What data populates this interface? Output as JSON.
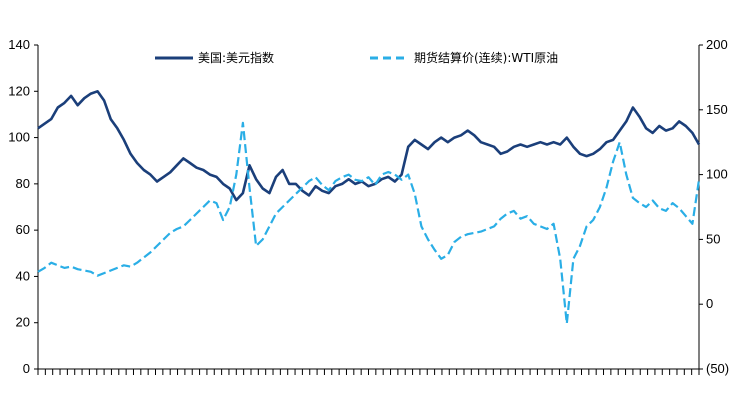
{
  "chart_data": {
    "type": "line",
    "title": "",
    "xlabel": "",
    "ylabel": "",
    "y_left": {
      "range": [
        0,
        140
      ],
      "ticks": [
        0,
        20,
        40,
        60,
        80,
        100,
        120,
        140
      ],
      "tick_labels": [
        "0",
        "20",
        "40",
        "60",
        "80",
        "100",
        "120",
        "140"
      ]
    },
    "y_right": {
      "range": [
        -50,
        200
      ],
      "ticks": [
        -50,
        0,
        50,
        100,
        150,
        200
      ],
      "tick_labels": [
        "(50)",
        "0",
        "50",
        "100",
        "150",
        "200"
      ]
    },
    "grid": false,
    "legend": {
      "placement": "top",
      "orientation": "horizontal"
    },
    "x_ticks": {
      "count": 90,
      "labels_shown": false
    },
    "series": [
      {
        "name": "美国:美元指数",
        "axis": "left",
        "style": "solid",
        "color": "#1b3f7a",
        "x": [
          0.0,
          0.01,
          0.02,
          0.03,
          0.04,
          0.05,
          0.06,
          0.07,
          0.08,
          0.09,
          0.1,
          0.11,
          0.12,
          0.13,
          0.14,
          0.15,
          0.16,
          0.17,
          0.18,
          0.19,
          0.2,
          0.21,
          0.22,
          0.23,
          0.24,
          0.25,
          0.26,
          0.27,
          0.28,
          0.29,
          0.3,
          0.31,
          0.32,
          0.33,
          0.34,
          0.35,
          0.36,
          0.37,
          0.38,
          0.39,
          0.4,
          0.41,
          0.42,
          0.43,
          0.44,
          0.45,
          0.46,
          0.47,
          0.48,
          0.49,
          0.5,
          0.51,
          0.52,
          0.53,
          0.54,
          0.55,
          0.56,
          0.57,
          0.58,
          0.59,
          0.6,
          0.61,
          0.62,
          0.63,
          0.64,
          0.65,
          0.66,
          0.67,
          0.68,
          0.69,
          0.7,
          0.71,
          0.72,
          0.73,
          0.74,
          0.75,
          0.76,
          0.77,
          0.78,
          0.79,
          0.8,
          0.81,
          0.82,
          0.83,
          0.84,
          0.85,
          0.86,
          0.87,
          0.88,
          0.89,
          0.9,
          0.91,
          0.92,
          0.93,
          0.94,
          0.95,
          0.96,
          0.97,
          0.98,
          0.99,
          1.0
        ],
        "values": [
          104,
          106,
          108,
          113,
          115,
          118,
          114,
          117,
          119,
          120,
          116,
          108,
          104,
          99,
          93,
          89,
          86,
          84,
          81,
          83,
          85,
          88,
          91,
          89,
          87,
          86,
          84,
          83,
          80,
          78,
          73,
          76,
          88,
          82,
          78,
          76,
          83,
          86,
          80,
          80,
          77,
          75,
          79,
          77,
          76,
          79,
          80,
          82,
          80,
          81,
          79,
          80,
          82,
          83,
          81,
          84,
          96,
          99,
          97,
          95,
          98,
          100,
          98,
          100,
          101,
          103,
          101,
          98,
          97,
          96,
          93,
          94,
          96,
          97,
          96,
          97,
          98,
          97,
          98,
          97,
          100,
          96,
          93,
          92,
          93,
          95,
          98,
          99,
          103,
          107,
          113,
          109,
          104,
          102,
          105,
          103,
          104,
          107,
          105,
          102,
          97
        ]
      },
      {
        "name": "期货结算价(连续):WTI原油",
        "axis": "right",
        "style": "dashed",
        "color": "#2aaee6",
        "x": [
          0.0,
          0.01,
          0.02,
          0.03,
          0.04,
          0.05,
          0.06,
          0.07,
          0.08,
          0.09,
          0.1,
          0.11,
          0.12,
          0.13,
          0.14,
          0.15,
          0.16,
          0.17,
          0.18,
          0.19,
          0.2,
          0.21,
          0.22,
          0.23,
          0.24,
          0.25,
          0.26,
          0.27,
          0.28,
          0.29,
          0.3,
          0.31,
          0.32,
          0.33,
          0.34,
          0.35,
          0.36,
          0.37,
          0.38,
          0.39,
          0.4,
          0.41,
          0.42,
          0.43,
          0.44,
          0.45,
          0.46,
          0.47,
          0.48,
          0.49,
          0.5,
          0.51,
          0.52,
          0.53,
          0.54,
          0.55,
          0.56,
          0.57,
          0.58,
          0.59,
          0.6,
          0.61,
          0.62,
          0.63,
          0.64,
          0.65,
          0.66,
          0.67,
          0.68,
          0.69,
          0.7,
          0.71,
          0.72,
          0.73,
          0.74,
          0.75,
          0.76,
          0.77,
          0.78,
          0.79,
          0.8,
          0.81,
          0.82,
          0.83,
          0.84,
          0.85,
          0.86,
          0.87,
          0.88,
          0.89,
          0.9,
          0.91,
          0.92,
          0.93,
          0.94,
          0.95,
          0.96,
          0.97,
          0.98,
          0.99,
          1.0
        ],
        "values": [
          25,
          28,
          32,
          30,
          28,
          29,
          27,
          26,
          25,
          22,
          24,
          26,
          28,
          30,
          29,
          32,
          36,
          40,
          45,
          50,
          55,
          58,
          60,
          65,
          70,
          75,
          80,
          78,
          65,
          75,
          100,
          140,
          90,
          45,
          50,
          60,
          70,
          75,
          80,
          85,
          90,
          95,
          98,
          92,
          88,
          95,
          98,
          100,
          96,
          95,
          98,
          92,
          100,
          102,
          100,
          96,
          100,
          85,
          60,
          50,
          42,
          35,
          38,
          48,
          52,
          54,
          55,
          56,
          58,
          60,
          66,
          70,
          72,
          66,
          68,
          62,
          60,
          58,
          62,
          35,
          -15,
          35,
          45,
          60,
          65,
          75,
          90,
          110,
          125,
          100,
          82,
          78,
          75,
          80,
          74,
          72,
          78,
          74,
          68,
          62,
          96
        ]
      }
    ]
  }
}
